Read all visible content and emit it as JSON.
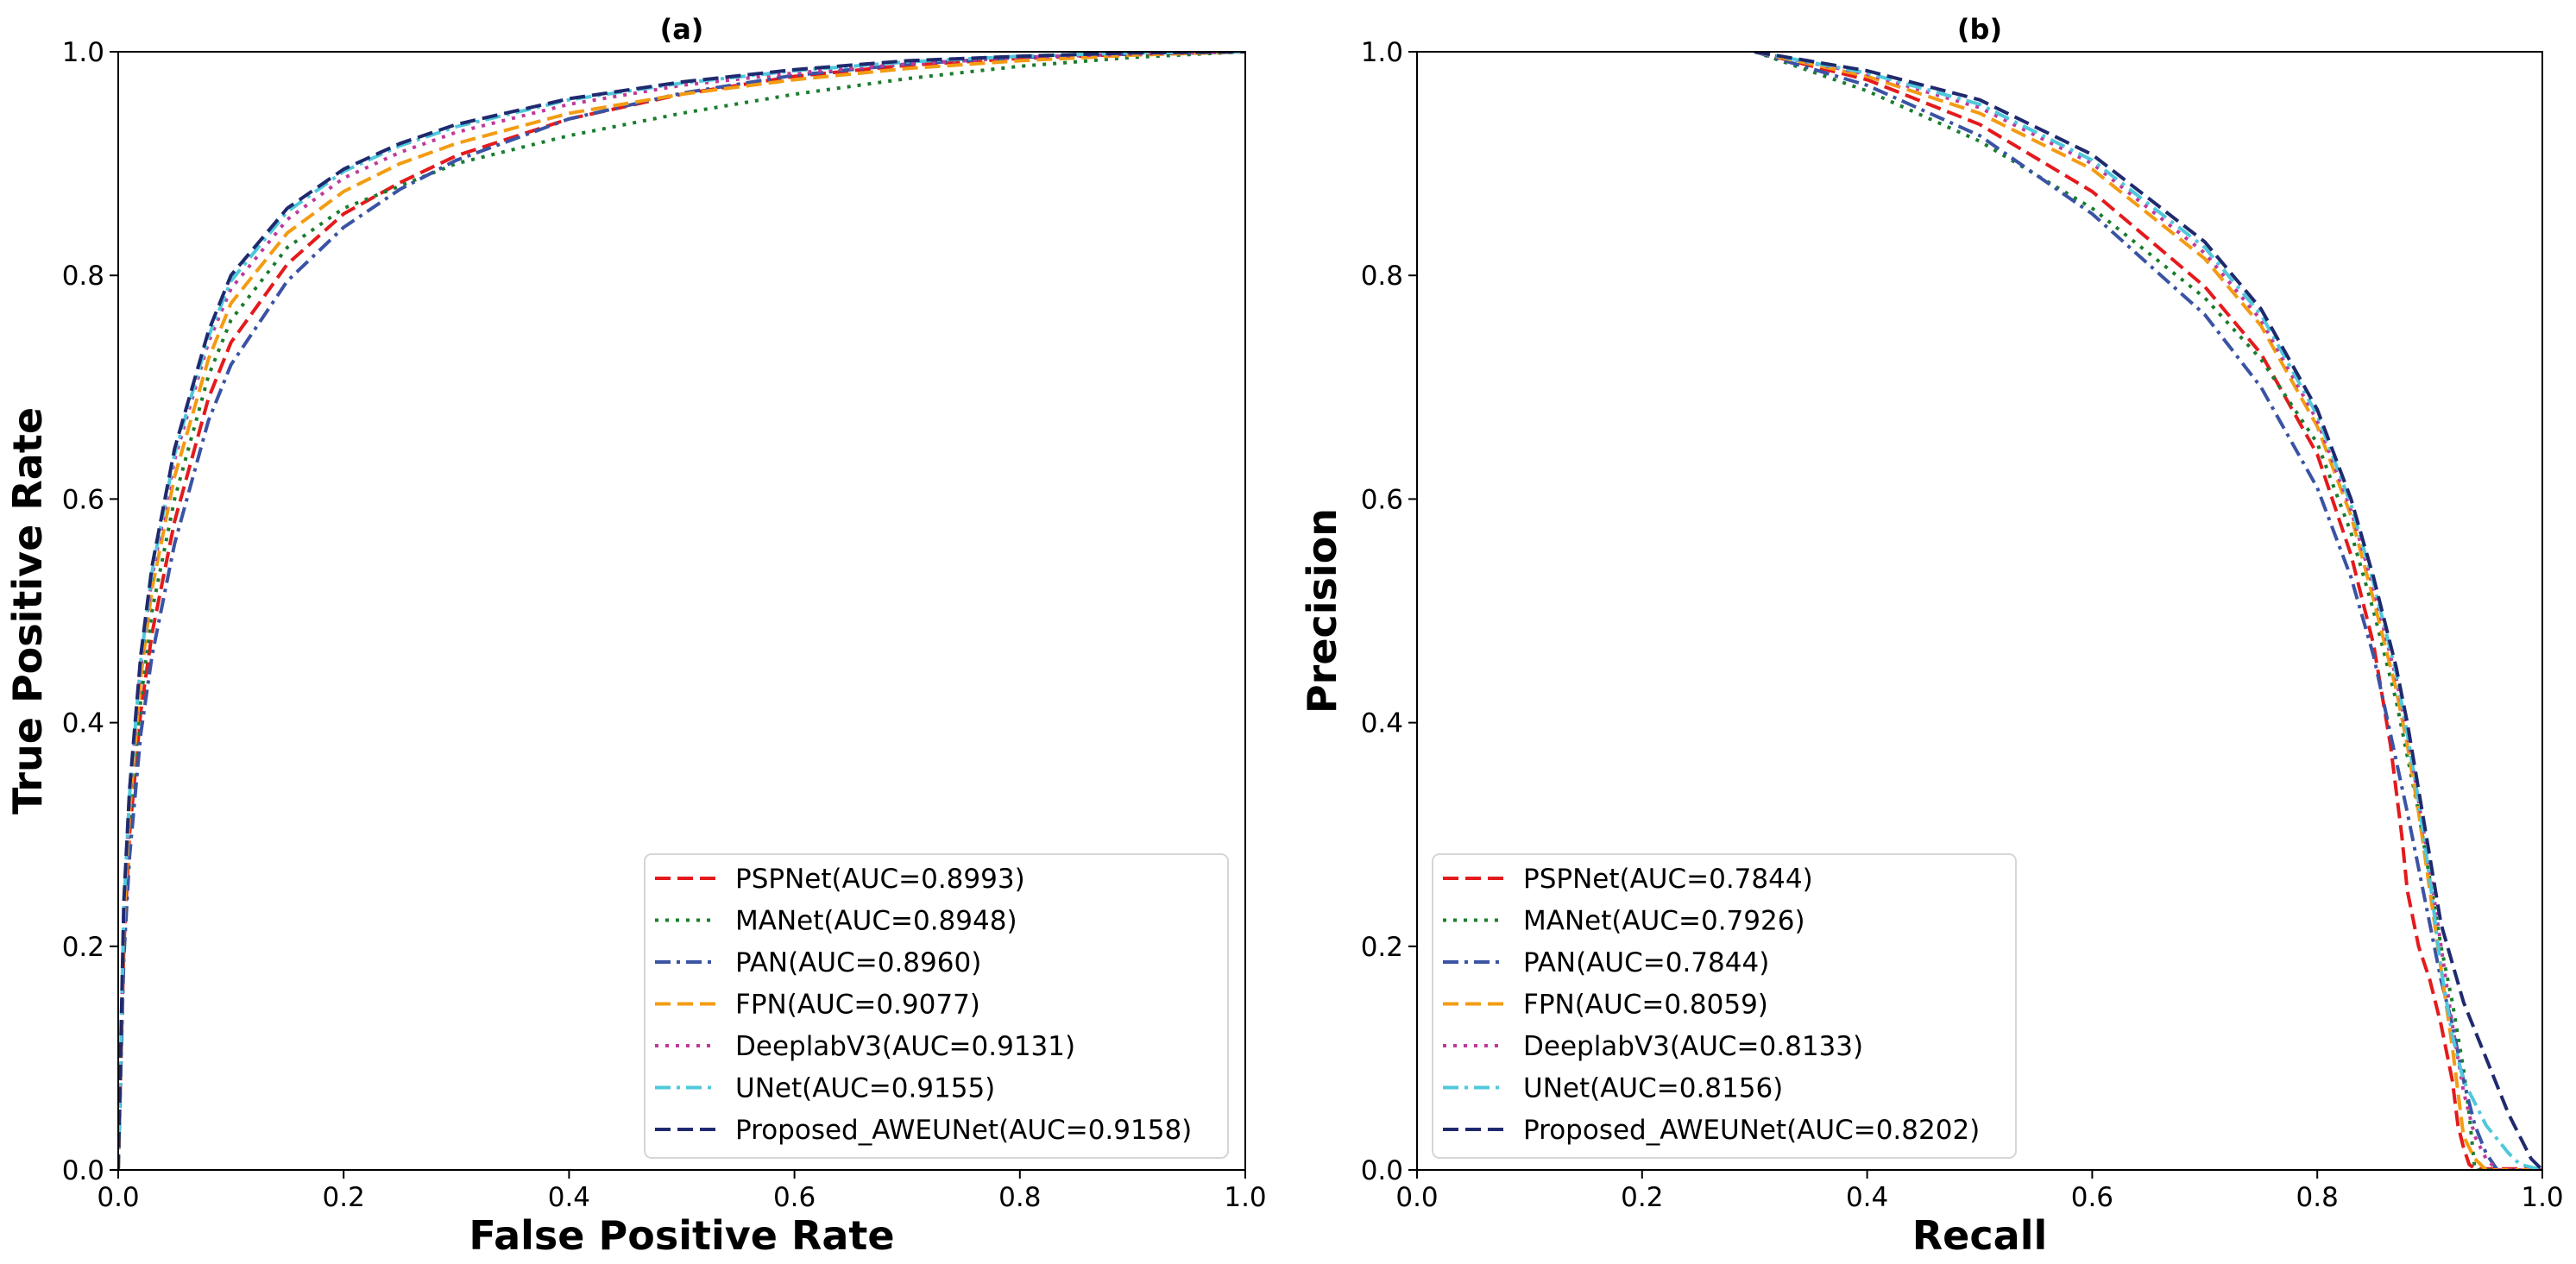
{
  "chart_data": [
    {
      "type": "line",
      "title": "(a)",
      "xlabel": "False Positive Rate",
      "ylabel": "True Positive Rate",
      "xlim": [
        0,
        1
      ],
      "ylim": [
        0,
        1
      ],
      "xticks": [
        "0.0",
        "0.2",
        "0.4",
        "0.6",
        "0.8",
        "1.0"
      ],
      "yticks": [
        "0.0",
        "0.2",
        "0.4",
        "0.6",
        "0.8",
        "1.0"
      ],
      "legend_position": "lower-right",
      "series": [
        {
          "name": "PSPNet(AUC=0.8993)",
          "color": "#e41a1c",
          "dash": "dashed",
          "x": [
            0,
            0.005,
            0.01,
            0.02,
            0.03,
            0.05,
            0.08,
            0.1,
            0.15,
            0.2,
            0.25,
            0.3,
            0.4,
            0.5,
            0.6,
            0.7,
            0.8,
            0.9,
            1.0
          ],
          "y": [
            0,
            0.2,
            0.3,
            0.41,
            0.48,
            0.58,
            0.69,
            0.74,
            0.81,
            0.855,
            0.883,
            0.907,
            0.94,
            0.962,
            0.978,
            0.988,
            0.994,
            0.998,
            1.0
          ]
        },
        {
          "name": "MANet(AUC=0.8948)",
          "color": "#1a7d2e",
          "dash": "dotted",
          "x": [
            0,
            0.005,
            0.01,
            0.02,
            0.03,
            0.05,
            0.08,
            0.1,
            0.15,
            0.2,
            0.25,
            0.3,
            0.4,
            0.5,
            0.6,
            0.7,
            0.8,
            0.9,
            1.0
          ],
          "y": [
            0,
            0.21,
            0.31,
            0.42,
            0.5,
            0.6,
            0.71,
            0.76,
            0.825,
            0.86,
            0.88,
            0.9,
            0.925,
            0.945,
            0.962,
            0.976,
            0.987,
            0.995,
            1.0
          ]
        },
        {
          "name": "PAN(AUC=0.8960)",
          "color": "#3a53a4",
          "dash": "dashdot",
          "x": [
            0,
            0.005,
            0.01,
            0.02,
            0.03,
            0.05,
            0.08,
            0.1,
            0.15,
            0.2,
            0.25,
            0.3,
            0.4,
            0.5,
            0.6,
            0.7,
            0.8,
            0.9,
            1.0
          ],
          "y": [
            0,
            0.19,
            0.28,
            0.39,
            0.46,
            0.56,
            0.67,
            0.72,
            0.795,
            0.843,
            0.877,
            0.903,
            0.94,
            0.963,
            0.979,
            0.989,
            0.995,
            0.998,
            1.0
          ]
        },
        {
          "name": "FPN(AUC=0.9077)",
          "color": "#f39c12",
          "dash": "dashed",
          "x": [
            0,
            0.005,
            0.01,
            0.02,
            0.03,
            0.05,
            0.08,
            0.1,
            0.15,
            0.2,
            0.25,
            0.3,
            0.4,
            0.5,
            0.6,
            0.7,
            0.8,
            0.9,
            1.0
          ],
          "y": [
            0,
            0.22,
            0.32,
            0.44,
            0.52,
            0.62,
            0.725,
            0.775,
            0.838,
            0.875,
            0.9,
            0.918,
            0.945,
            0.962,
            0.975,
            0.985,
            0.992,
            0.997,
            1.0
          ]
        },
        {
          "name": "DeeplabV3(AUC=0.9131)",
          "color": "#c0399a",
          "dash": "dotted",
          "x": [
            0,
            0.005,
            0.01,
            0.02,
            0.03,
            0.05,
            0.08,
            0.1,
            0.15,
            0.2,
            0.25,
            0.3,
            0.4,
            0.5,
            0.6,
            0.7,
            0.8,
            0.9,
            1.0
          ],
          "y": [
            0,
            0.23,
            0.33,
            0.45,
            0.53,
            0.635,
            0.74,
            0.788,
            0.85,
            0.887,
            0.91,
            0.928,
            0.953,
            0.97,
            0.981,
            0.989,
            0.995,
            0.998,
            1.0
          ]
        },
        {
          "name": "UNet(AUC=0.9155)",
          "color": "#4fc8dc",
          "dash": "dashdot",
          "x": [
            0,
            0.005,
            0.01,
            0.02,
            0.03,
            0.05,
            0.08,
            0.1,
            0.15,
            0.2,
            0.25,
            0.3,
            0.4,
            0.5,
            0.6,
            0.7,
            0.8,
            0.9,
            1.0
          ],
          "y": [
            0,
            0.235,
            0.335,
            0.455,
            0.535,
            0.64,
            0.745,
            0.795,
            0.857,
            0.893,
            0.916,
            0.933,
            0.957,
            0.972,
            0.983,
            0.991,
            0.996,
            0.999,
            1.0
          ]
        },
        {
          "name": "Proposed_AWEUNet(AUC=0.9158)",
          "color": "#1f2a6e",
          "dash": "dashed",
          "x": [
            0,
            0.005,
            0.01,
            0.02,
            0.03,
            0.05,
            0.08,
            0.1,
            0.15,
            0.2,
            0.25,
            0.3,
            0.4,
            0.5,
            0.6,
            0.7,
            0.8,
            0.9,
            1.0
          ],
          "y": [
            0,
            0.24,
            0.34,
            0.46,
            0.54,
            0.645,
            0.75,
            0.8,
            0.86,
            0.895,
            0.918,
            0.935,
            0.958,
            0.973,
            0.984,
            0.992,
            0.996,
            0.999,
            1.0
          ]
        }
      ]
    },
    {
      "type": "line",
      "title": "(b)",
      "xlabel": "Recall",
      "ylabel": "Precision",
      "xlim": [
        0,
        1
      ],
      "ylim": [
        0,
        1
      ],
      "xticks": [
        "0.0",
        "0.2",
        "0.4",
        "0.6",
        "0.8",
        "1.0"
      ],
      "yticks": [
        "0.0",
        "0.2",
        "0.4",
        "0.6",
        "0.8",
        "1.0"
      ],
      "legend_position": "lower-left",
      "series": [
        {
          "name": "PSPNet(AUC=0.7844)",
          "color": "#e41a1c",
          "dash": "dashed",
          "x": [
            0.3,
            0.4,
            0.5,
            0.6,
            0.7,
            0.75,
            0.8,
            0.83,
            0.85,
            0.865,
            0.875,
            0.88,
            0.89,
            0.9,
            0.91,
            0.92,
            0.925,
            0.93,
            0.935,
            0.94,
            1.0
          ],
          "y": [
            1.0,
            0.975,
            0.935,
            0.875,
            0.79,
            0.73,
            0.64,
            0.55,
            0.47,
            0.38,
            0.3,
            0.25,
            0.2,
            0.17,
            0.13,
            0.08,
            0.04,
            0.02,
            0.005,
            0.001,
            0.001
          ]
        },
        {
          "name": "MANet(AUC=0.7926)",
          "color": "#1a7d2e",
          "dash": "dotted",
          "x": [
            0.3,
            0.4,
            0.5,
            0.6,
            0.7,
            0.75,
            0.8,
            0.83,
            0.85,
            0.87,
            0.89,
            0.9,
            0.91,
            0.92,
            0.93,
            0.935,
            0.94,
            1.0
          ],
          "y": [
            1.0,
            0.965,
            0.92,
            0.86,
            0.78,
            0.725,
            0.65,
            0.57,
            0.5,
            0.42,
            0.32,
            0.26,
            0.2,
            0.15,
            0.09,
            0.05,
            0.0,
            0.0
          ]
        },
        {
          "name": "PAN(AUC=0.7844)",
          "color": "#3a53a4",
          "dash": "dashdot",
          "x": [
            0.3,
            0.4,
            0.5,
            0.6,
            0.7,
            0.75,
            0.8,
            0.83,
            0.85,
            0.865,
            0.88,
            0.89,
            0.9,
            0.91,
            0.92,
            0.93,
            0.94,
            0.95,
            0.96,
            1.0
          ],
          "y": [
            1.0,
            0.97,
            0.925,
            0.855,
            0.765,
            0.7,
            0.61,
            0.53,
            0.46,
            0.39,
            0.32,
            0.27,
            0.22,
            0.17,
            0.13,
            0.08,
            0.04,
            0.015,
            0.0,
            0.0
          ]
        },
        {
          "name": "FPN(AUC=0.8059)",
          "color": "#f39c12",
          "dash": "dashed",
          "x": [
            0.3,
            0.4,
            0.5,
            0.6,
            0.7,
            0.75,
            0.8,
            0.83,
            0.85,
            0.87,
            0.88,
            0.89,
            0.9,
            0.91,
            0.92,
            0.925,
            0.93,
            0.94,
            0.95,
            1.0
          ],
          "y": [
            1.0,
            0.978,
            0.945,
            0.895,
            0.815,
            0.755,
            0.665,
            0.585,
            0.51,
            0.43,
            0.38,
            0.32,
            0.25,
            0.18,
            0.11,
            0.07,
            0.03,
            0.01,
            0.0,
            0.0
          ]
        },
        {
          "name": "DeeplabV3(AUC=0.8133)",
          "color": "#c0399a",
          "dash": "dotted",
          "x": [
            0.3,
            0.4,
            0.5,
            0.6,
            0.7,
            0.75,
            0.8,
            0.83,
            0.85,
            0.87,
            0.88,
            0.89,
            0.9,
            0.91,
            0.92,
            0.93,
            0.94,
            0.95,
            0.96,
            1.0
          ],
          "y": [
            1.0,
            0.98,
            0.95,
            0.9,
            0.82,
            0.76,
            0.67,
            0.59,
            0.52,
            0.44,
            0.39,
            0.33,
            0.27,
            0.2,
            0.13,
            0.07,
            0.03,
            0.01,
            0.0,
            0.0
          ]
        },
        {
          "name": "UNet(AUC=0.8156)",
          "color": "#4fc8dc",
          "dash": "dashdot",
          "x": [
            0.3,
            0.4,
            0.5,
            0.6,
            0.7,
            0.75,
            0.8,
            0.83,
            0.85,
            0.87,
            0.88,
            0.89,
            0.9,
            0.91,
            0.92,
            0.93,
            0.95,
            0.97,
            0.98,
            1.0
          ],
          "y": [
            1.0,
            0.981,
            0.953,
            0.903,
            0.825,
            0.765,
            0.675,
            0.595,
            0.525,
            0.445,
            0.39,
            0.33,
            0.26,
            0.18,
            0.12,
            0.08,
            0.04,
            0.015,
            0.005,
            0.0
          ]
        },
        {
          "name": "Proposed_AWEUNet(AUC=0.8202)",
          "color": "#1f2a6e",
          "dash": "dashed",
          "x": [
            0.3,
            0.4,
            0.5,
            0.6,
            0.7,
            0.75,
            0.8,
            0.83,
            0.85,
            0.87,
            0.88,
            0.89,
            0.9,
            0.91,
            0.93,
            0.95,
            0.97,
            0.99,
            1.0
          ],
          "y": [
            1.0,
            0.983,
            0.957,
            0.908,
            0.83,
            0.77,
            0.68,
            0.6,
            0.53,
            0.45,
            0.4,
            0.34,
            0.28,
            0.22,
            0.15,
            0.1,
            0.05,
            0.01,
            0.0
          ]
        }
      ]
    }
  ]
}
